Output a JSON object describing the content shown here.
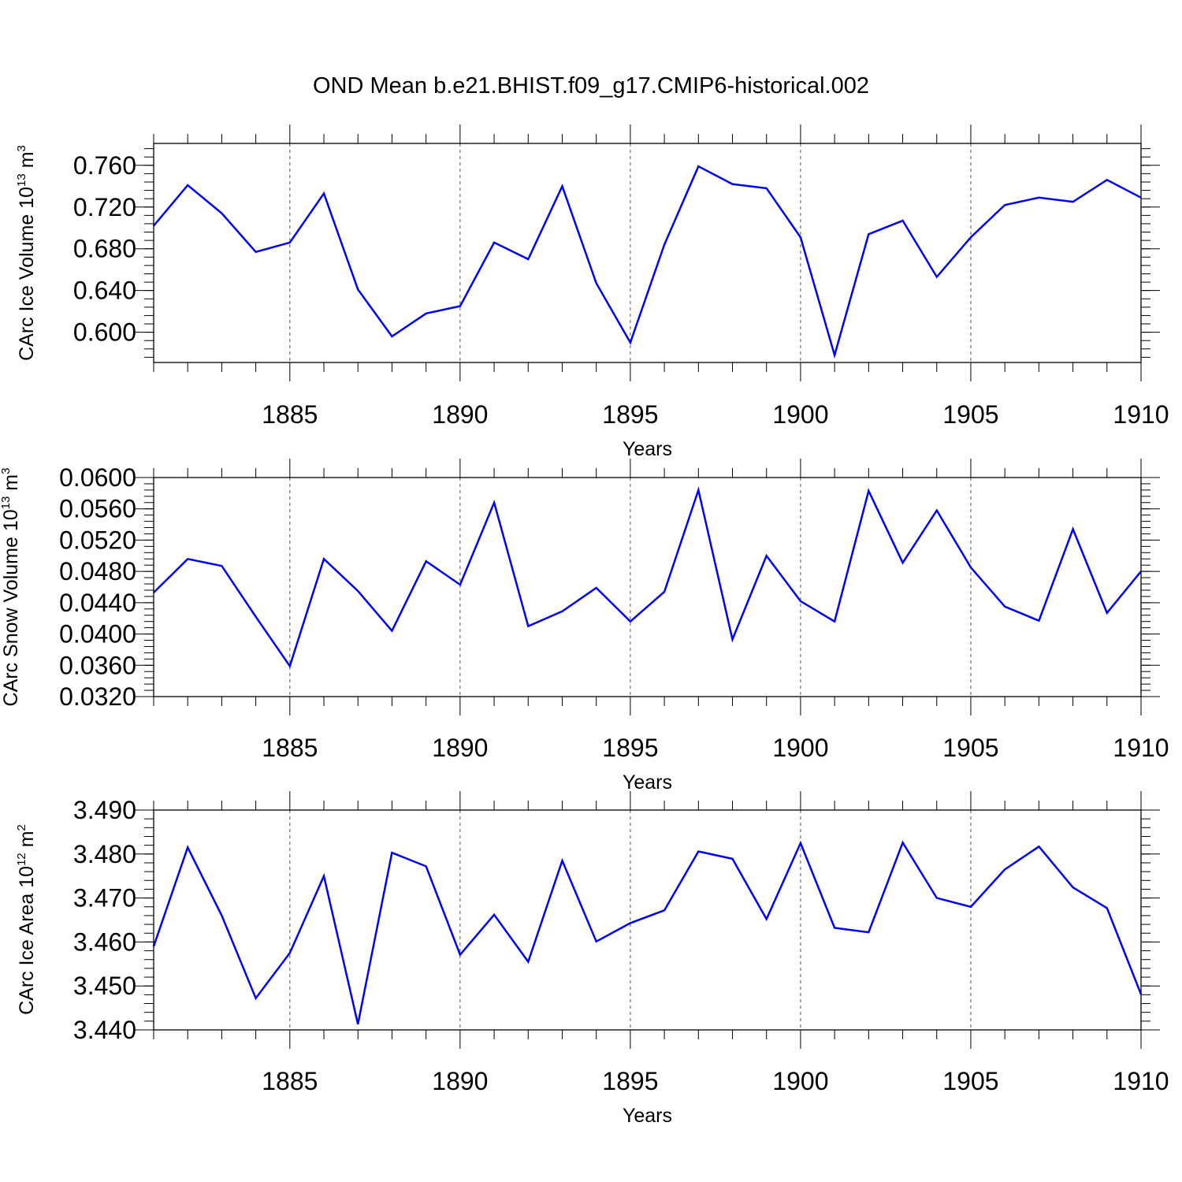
{
  "title": "OND Mean b.e21.BHIST.f09_g17.CMIP6-historical.002",
  "chart_data": [
    {
      "type": "line",
      "ylabel": "CArc Ice Volume 10",
      "ylabel_exp": "13",
      "ylabel_unit": " m",
      "ylabel_unit_exp": "3",
      "xlabel": "Years",
      "xlim": [
        1881,
        1910
      ],
      "ylim": [
        0.571,
        0.781
      ],
      "xticks": [
        "1885",
        "1890",
        "1895",
        "1900",
        "1905",
        "1910"
      ],
      "yticks": [
        "0.600",
        "0.640",
        "0.680",
        "0.720",
        "0.760"
      ],
      "series": [
        {
          "name": "CArc Ice Volume",
          "color": "#0000ff",
          "x": [
            1881,
            1882,
            1883,
            1884,
            1885,
            1886,
            1887,
            1888,
            1889,
            1890,
            1891,
            1892,
            1893,
            1894,
            1895,
            1896,
            1897,
            1898,
            1899,
            1900,
            1901,
            1902,
            1903,
            1904,
            1905,
            1906,
            1907,
            1908,
            1909,
            1910
          ],
          "values": [
            0.702,
            0.741,
            0.714,
            0.677,
            0.686,
            0.733,
            0.641,
            0.596,
            0.618,
            0.625,
            0.686,
            0.67,
            0.74,
            0.647,
            0.59,
            0.684,
            0.759,
            0.742,
            0.738,
            0.691,
            0.578,
            0.694,
            0.707,
            0.653,
            0.691,
            0.722,
            0.729,
            0.725,
            0.746,
            0.729
          ]
        }
      ]
    },
    {
      "type": "line",
      "ylabel": "CArc Snow Volume 10",
      "ylabel_exp": "13",
      "ylabel_unit": " m",
      "ylabel_unit_exp": "3",
      "xlabel": "Years",
      "xlim": [
        1881,
        1910
      ],
      "ylim": [
        0.032,
        0.06
      ],
      "xticks": [
        "1885",
        "1890",
        "1895",
        "1900",
        "1905",
        "1910"
      ],
      "yticks": [
        "0.0320",
        "0.0360",
        "0.0400",
        "0.0440",
        "0.0480",
        "0.0520",
        "0.0560",
        "0.0600"
      ],
      "series": [
        {
          "name": "CArc Snow Volume",
          "color": "#0000ff",
          "x": [
            1881,
            1882,
            1883,
            1884,
            1885,
            1886,
            1887,
            1888,
            1889,
            1890,
            1891,
            1892,
            1893,
            1894,
            1895,
            1896,
            1897,
            1898,
            1899,
            1900,
            1901,
            1902,
            1903,
            1904,
            1905,
            1906,
            1907,
            1908,
            1909,
            1910
          ],
          "values": [
            0.0453,
            0.0496,
            0.0487,
            0.0422,
            0.0359,
            0.0496,
            0.0455,
            0.0404,
            0.0493,
            0.0463,
            0.0568,
            0.041,
            0.0429,
            0.0459,
            0.0416,
            0.0454,
            0.0584,
            0.0393,
            0.05,
            0.0442,
            0.0416,
            0.0583,
            0.0491,
            0.0558,
            0.0485,
            0.0435,
            0.0417,
            0.0534,
            0.0427,
            0.048
          ]
        }
      ]
    },
    {
      "type": "line",
      "ylabel": "CArc Ice Area 10",
      "ylabel_exp": "12",
      "ylabel_unit": " m",
      "ylabel_unit_exp": "2",
      "xlabel": "Years",
      "xlim": [
        1881,
        1910
      ],
      "ylim": [
        3.44,
        3.49
      ],
      "xticks": [
        "1885",
        "1890",
        "1895",
        "1900",
        "1905",
        "1910"
      ],
      "yticks": [
        "3.440",
        "3.450",
        "3.460",
        "3.470",
        "3.480",
        "3.490"
      ],
      "series": [
        {
          "name": "CArc Ice Area",
          "color": "#0000ff",
          "x": [
            1881,
            1882,
            1883,
            1884,
            1885,
            1886,
            1887,
            1888,
            1889,
            1890,
            1891,
            1892,
            1893,
            1894,
            1895,
            1896,
            1897,
            1898,
            1899,
            1900,
            1901,
            1902,
            1903,
            1904,
            1905,
            1906,
            1907,
            1908,
            1909,
            1910
          ],
          "values": [
            3.459,
            3.4815,
            3.466,
            3.4472,
            3.4575,
            3.475,
            3.4413,
            3.4803,
            3.4772,
            3.4571,
            3.4662,
            3.4555,
            3.4785,
            3.4601,
            3.4643,
            3.4672,
            3.4806,
            3.4789,
            3.4652,
            3.4825,
            3.4632,
            3.4622,
            3.4826,
            3.47,
            3.468,
            3.4765,
            3.4817,
            3.4724,
            3.4677,
            3.4481
          ]
        }
      ]
    }
  ]
}
